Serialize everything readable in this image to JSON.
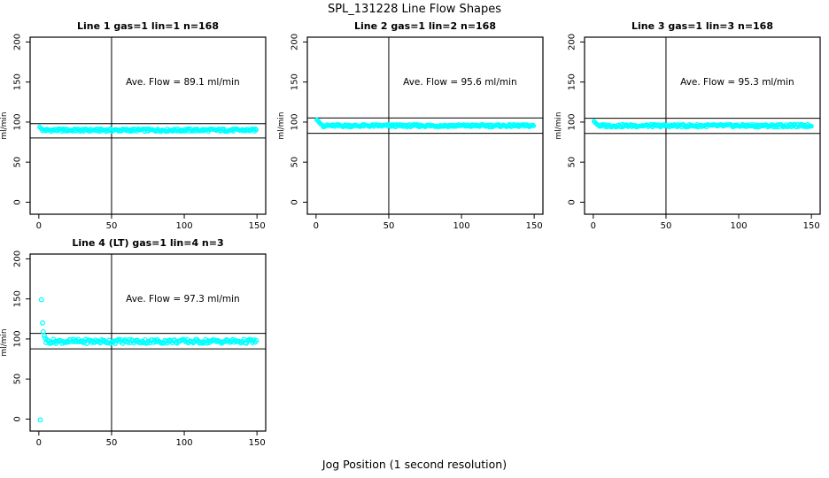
{
  "figure": {
    "title": "SPL_131228  Line Flow Shapes",
    "xlabel": "Jog Position (1 second resolution)",
    "background": "#FFFFFF",
    "marker_color": "#00FFFF",
    "line_color": "#000000",
    "text_color": "#000000"
  },
  "chart_data": [
    {
      "type": "scatter",
      "title": "Line 1 gas=1 lin=1 n=168",
      "annotation": "Ave. Flow =  89.1  ml/min",
      "ave_flow_ml_min": 89.1,
      "ylabel": "ml/min",
      "xticks": [
        0,
        50,
        100,
        150
      ],
      "yticks": [
        0,
        50,
        100,
        150,
        200
      ],
      "xlim": [
        -6,
        156
      ],
      "ylim": [
        -15,
        206
      ],
      "grid": false,
      "legend": "none",
      "vline_x": 50,
      "hlines": [
        98.0,
        80.2
      ],
      "transient_points": [
        [
          0.5,
          94
        ],
        [
          1.2,
          92.5
        ],
        [
          2,
          91.5
        ]
      ],
      "steady_band": {
        "x_from": 2.5,
        "x_to": 150,
        "step": 0.6,
        "y": 90,
        "jitter": 1.8
      },
      "marker_radius": 2.0
    },
    {
      "type": "scatter",
      "title": "Line 2 gas=1 lin=2 n=168",
      "annotation": "Ave. Flow =  95.6  ml/min",
      "ave_flow_ml_min": 95.6,
      "ylabel": "ml/min",
      "xticks": [
        0,
        50,
        100,
        150
      ],
      "yticks": [
        0,
        50,
        100,
        150,
        200
      ],
      "xlim": [
        -6,
        156
      ],
      "ylim": [
        -15,
        206
      ],
      "grid": false,
      "legend": "none",
      "vline_x": 50,
      "hlines": [
        105.2,
        86.0
      ],
      "transient_points": [
        [
          0.5,
          103
        ],
        [
          1,
          102
        ],
        [
          1.6,
          101
        ],
        [
          2.2,
          99.5
        ],
        [
          2.8,
          98.2
        ],
        [
          3.5,
          97.2
        ],
        [
          4.3,
          96.4
        ]
      ],
      "steady_band": {
        "x_from": 5,
        "x_to": 150,
        "step": 0.6,
        "y": 95.5,
        "jitter": 1.6
      },
      "marker_radius": 2.0
    },
    {
      "type": "scatter",
      "title": "Line 3 gas=1 lin=3 n=168",
      "annotation": "Ave. Flow =  95.3  ml/min",
      "ave_flow_ml_min": 95.3,
      "ylabel": "ml/min",
      "xticks": [
        0,
        50,
        100,
        150
      ],
      "yticks": [
        0,
        50,
        100,
        150,
        200
      ],
      "xlim": [
        -6,
        156
      ],
      "ylim": [
        -15,
        206
      ],
      "grid": false,
      "legend": "none",
      "vline_x": 50,
      "hlines": [
        104.8,
        85.8
      ],
      "transient_points": [
        [
          0.5,
          101
        ],
        [
          1.1,
          100
        ],
        [
          1.8,
          98.5
        ],
        [
          2.6,
          97.2
        ],
        [
          3.5,
          96.3
        ]
      ],
      "steady_band": {
        "x_from": 4.2,
        "x_to": 150,
        "step": 0.6,
        "y": 95.5,
        "jitter": 1.8
      },
      "marker_radius": 2.0
    },
    {
      "type": "scatter",
      "title": "Line 4 (LT) gas=1 lin=4 n=3",
      "annotation": "Ave. Flow =  97.3  ml/min",
      "ave_flow_ml_min": 97.3,
      "ylabel": "ml/min",
      "xticks": [
        0,
        50,
        100,
        150
      ],
      "yticks": [
        0,
        50,
        100,
        150,
        200
      ],
      "xlim": [
        -6,
        156
      ],
      "ylim": [
        -15,
        206
      ],
      "grid": false,
      "legend": "none",
      "vline_x": 50,
      "hlines": [
        107.0,
        87.6
      ],
      "transient_points": [
        [
          1,
          -1
        ],
        [
          1.8,
          149
        ],
        [
          2.6,
          120
        ],
        [
          3,
          109
        ],
        [
          3.8,
          104
        ],
        [
          4.4,
          101
        ]
      ],
      "steady_band": {
        "x_from": 5,
        "x_to": 150,
        "step": 0.85,
        "y": 97,
        "jitter": 2.6
      },
      "marker_radius": 2.3
    }
  ]
}
